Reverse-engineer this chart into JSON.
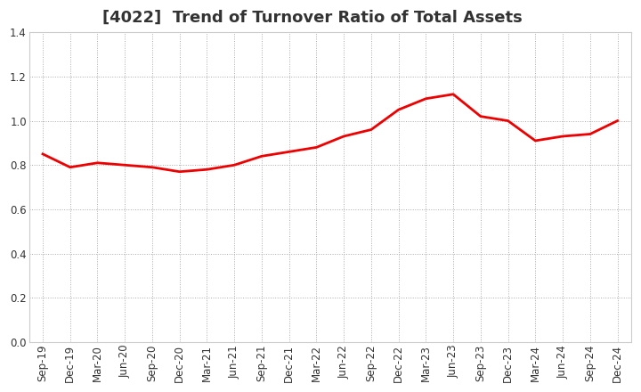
{
  "title": "[4022]  Trend of Turnover Ratio of Total Assets",
  "x_labels": [
    "Sep-19",
    "Dec-19",
    "Mar-20",
    "Jun-20",
    "Sep-20",
    "Dec-20",
    "Mar-21",
    "Jun-21",
    "Sep-21",
    "Dec-21",
    "Mar-22",
    "Jun-22",
    "Sep-22",
    "Dec-22",
    "Mar-23",
    "Jun-23",
    "Sep-23",
    "Dec-23",
    "Mar-24",
    "Jun-24",
    "Sep-24",
    "Dec-24"
  ],
  "y_values": [
    0.85,
    0.79,
    0.81,
    0.8,
    0.79,
    0.77,
    0.78,
    0.8,
    0.84,
    0.86,
    0.88,
    0.93,
    0.96,
    1.05,
    1.1,
    1.12,
    1.02,
    1.0,
    0.91,
    0.93,
    0.94,
    1.0
  ],
  "line_color": "#ee0000",
  "line_width": 2.0,
  "ylim": [
    0.0,
    1.4
  ],
  "yticks": [
    0.0,
    0.2,
    0.4,
    0.6,
    0.8,
    1.0,
    1.2,
    1.4
  ],
  "grid_color": "#aaaaaa",
  "grid_linestyle": "dotted",
  "background_color": "#ffffff",
  "plot_bg_color": "#ffffff",
  "title_fontsize": 13,
  "tick_fontsize": 8.5,
  "title_color": "#333333"
}
